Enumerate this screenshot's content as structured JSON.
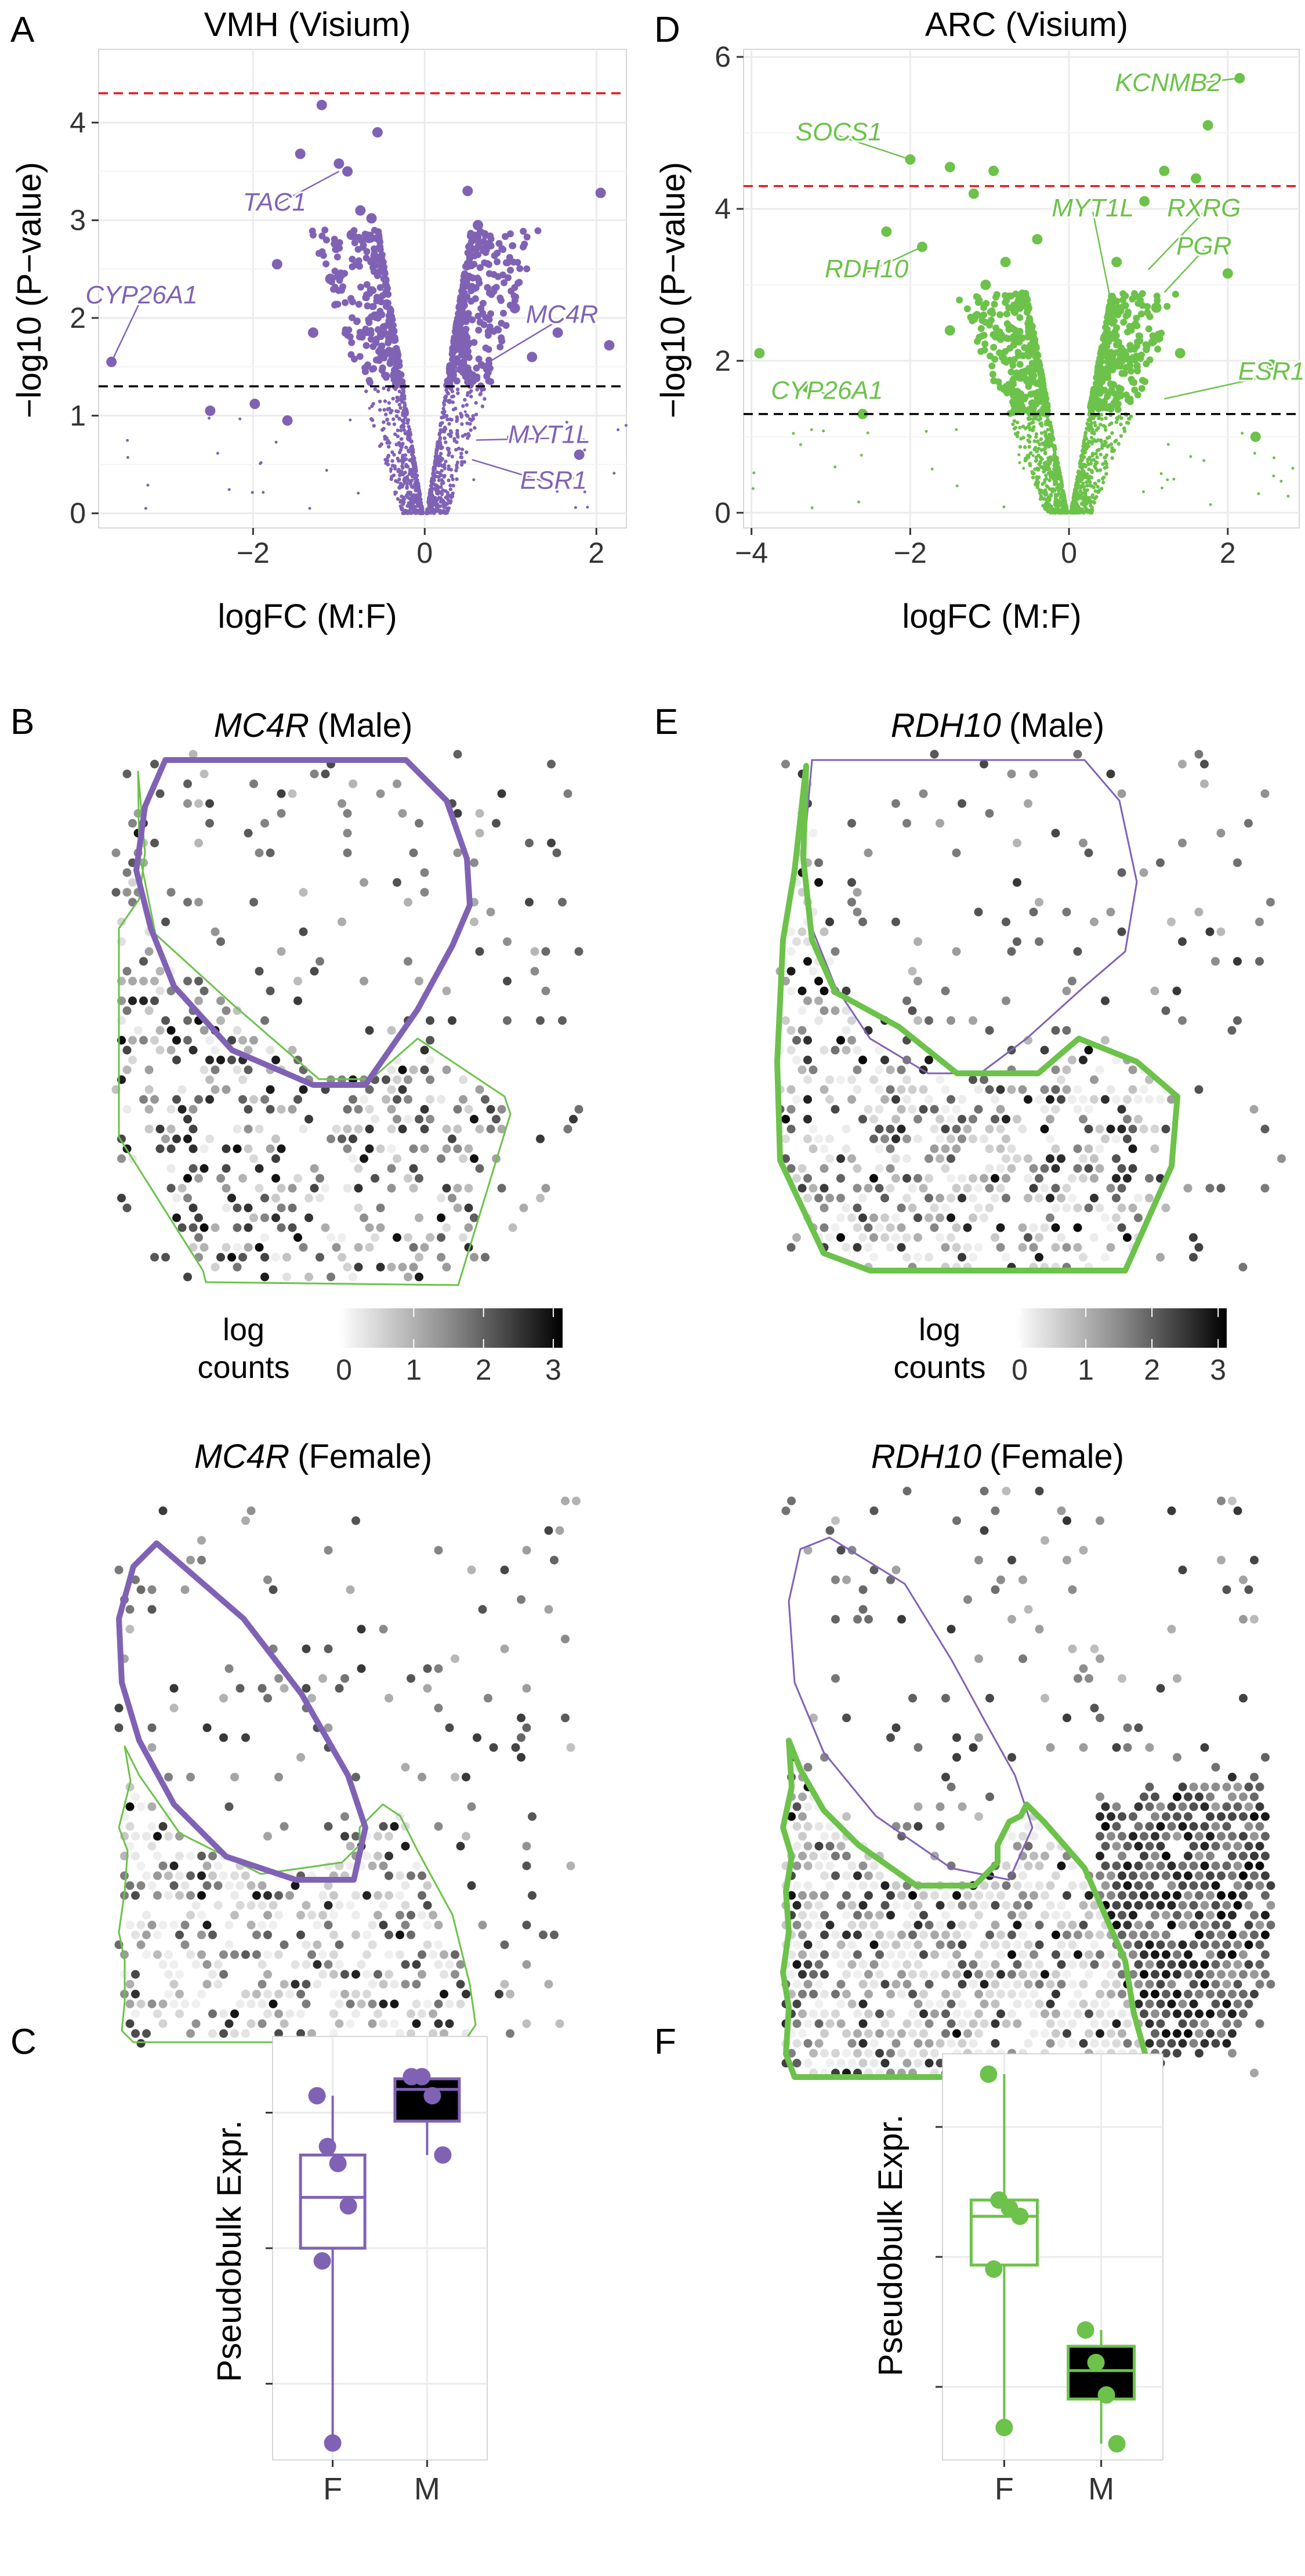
{
  "colors": {
    "vmh": "#8062b5",
    "arc": "#6cc24a",
    "redline": "#e41a1c",
    "blackline": "#000000",
    "grid": "#ebebeb",
    "axis": "#333333"
  },
  "panel_letters": {
    "A": "A",
    "B": "B",
    "C": "C",
    "D": "D",
    "E": "E",
    "F": "F"
  },
  "colorbar_a": {
    "label_line1": "log",
    "label_line2": "counts",
    "ticks": [
      "0",
      "1",
      "2",
      "3"
    ]
  },
  "colorbar_b": {
    "label_line1": "log",
    "label_line2": "counts",
    "ticks": [
      "0",
      "1",
      "2",
      "3"
    ]
  },
  "spatial_titles": {
    "b_male_gene": "MC4R",
    "b_male_sex": "(Male)",
    "b_female_gene": "MC4R",
    "b_female_sex": "(Female)",
    "e_male_gene": "RDH10",
    "e_male_sex": "(Male)",
    "e_female_gene": "RDH10",
    "e_female_sex": "(Female)"
  },
  "chart_data": [
    {
      "type": "scatter",
      "panel": "A",
      "title": "VMH (Visium)",
      "xlabel": "logFC (M:F)",
      "ylabel": "−log10 (P−value)",
      "xlim": [
        -3.8,
        2.35
      ],
      "ylim": [
        -0.15,
        4.75
      ],
      "xticks": [
        -2,
        0,
        2
      ],
      "xtick_labels": [
        "−2",
        "0",
        "2"
      ],
      "yticks": [
        0,
        1,
        2,
        3,
        4
      ],
      "ytick_labels": [
        "0",
        "1",
        "2",
        "3",
        "4"
      ],
      "grid": true,
      "thresholds": [
        {
          "y": 4.3,
          "color": "red",
          "style": "dashed"
        },
        {
          "y": 1.3,
          "color": "black",
          "style": "dashed"
        }
      ],
      "points": [
        {
          "x": -1.2,
          "y": 4.18
        },
        {
          "x": -1.45,
          "y": 3.68
        },
        {
          "x": -1.0,
          "y": 3.58
        },
        {
          "x": -0.9,
          "y": 3.5
        },
        {
          "x": -0.55,
          "y": 3.9
        },
        {
          "x": -1.72,
          "y": 2.55
        },
        {
          "x": -3.65,
          "y": 1.55
        },
        {
          "x": 2.05,
          "y": 3.28
        },
        {
          "x": 0.5,
          "y": 3.3
        },
        {
          "x": 1.55,
          "y": 1.85
        },
        {
          "x": 2.15,
          "y": 1.72
        },
        {
          "x": -1.98,
          "y": 1.12
        },
        {
          "x": -1.6,
          "y": 0.95
        },
        {
          "x": 1.8,
          "y": 0.6
        },
        {
          "x": -0.75,
          "y": 3.1
        },
        {
          "x": -0.62,
          "y": 3.02
        },
        {
          "x": 0.62,
          "y": 2.95
        },
        {
          "x": 0.7,
          "y": 2.7
        },
        {
          "x": -0.85,
          "y": 2.85
        },
        {
          "x": -1.1,
          "y": 2.4
        },
        {
          "x": 1.05,
          "y": 2.1
        },
        {
          "x": -1.3,
          "y": 1.85
        },
        {
          "x": 1.25,
          "y": 1.6
        },
        {
          "x": -2.5,
          "y": 1.05
        }
      ],
      "cloud": {
        "spread": 0.55,
        "n": 1400
      },
      "labels": [
        {
          "text": "TAC1",
          "x": -1.75,
          "y": 3.1,
          "to_x": -1.0,
          "to_y": 3.5
        },
        {
          "text": "CYP26A1",
          "x": -3.3,
          "y": 2.15,
          "to_x": -3.65,
          "to_y": 1.55
        },
        {
          "text": "MC4R",
          "x": 1.6,
          "y": 1.95,
          "to_x": 0.75,
          "to_y": 1.55
        },
        {
          "text": "MYT1L",
          "x": 1.45,
          "y": 0.72,
          "to_x": 0.6,
          "to_y": 0.75
        },
        {
          "text": "ESR1",
          "x": 1.5,
          "y": 0.25,
          "to_x": 0.55,
          "to_y": 0.55
        }
      ]
    },
    {
      "type": "scatter",
      "panel": "D",
      "title": "ARC (Visium)",
      "xlabel": "logFC (M:F)",
      "ylabel": "−log10 (P−value)",
      "xlim": [
        -4.1,
        2.9
      ],
      "ylim": [
        -0.2,
        6.1
      ],
      "xticks": [
        -4,
        -2,
        0,
        2
      ],
      "xtick_labels": [
        "−4",
        "−2",
        "0",
        "2"
      ],
      "yticks": [
        0,
        2,
        4,
        6
      ],
      "ytick_labels": [
        "0",
        "2",
        "4",
        "6"
      ],
      "grid": true,
      "thresholds": [
        {
          "y": 4.3,
          "color": "red",
          "style": "dashed"
        },
        {
          "y": 1.3,
          "color": "black",
          "style": "dashed"
        }
      ],
      "points": [
        {
          "x": 2.15,
          "y": 5.72
        },
        {
          "x": 1.75,
          "y": 5.1
        },
        {
          "x": -2.0,
          "y": 4.65
        },
        {
          "x": -1.5,
          "y": 4.55
        },
        {
          "x": -0.95,
          "y": 4.5
        },
        {
          "x": 1.2,
          "y": 4.5
        },
        {
          "x": 1.6,
          "y": 4.4
        },
        {
          "x": -1.2,
          "y": 4.2
        },
        {
          "x": 0.95,
          "y": 4.1
        },
        {
          "x": 2.0,
          "y": 3.15
        },
        {
          "x": -2.3,
          "y": 3.7
        },
        {
          "x": -1.85,
          "y": 3.5
        },
        {
          "x": -3.3,
          "y": 1.65
        },
        {
          "x": -3.9,
          "y": 2.1
        },
        {
          "x": 2.55,
          "y": 1.95
        },
        {
          "x": 2.35,
          "y": 1.0
        },
        {
          "x": 0.6,
          "y": 3.3
        },
        {
          "x": -0.8,
          "y": 3.3
        },
        {
          "x": -1.05,
          "y": 3.0
        },
        {
          "x": 1.1,
          "y": 2.7
        },
        {
          "x": -2.6,
          "y": 1.3
        },
        {
          "x": -1.5,
          "y": 2.4
        },
        {
          "x": 1.4,
          "y": 2.1
        },
        {
          "x": -0.4,
          "y": 3.6
        }
      ],
      "cloud": {
        "spread": 0.6,
        "n": 1500
      },
      "labels": [
        {
          "text": "KCNMB2",
          "x": 1.25,
          "y": 5.55,
          "to_x": 2.15,
          "to_y": 5.72
        },
        {
          "text": "SOCS1",
          "x": -2.9,
          "y": 4.9,
          "to_x": -2.0,
          "to_y": 4.65
        },
        {
          "text": "MYT1L",
          "x": 0.3,
          "y": 3.9,
          "to_x": 0.6,
          "to_y": 2.4
        },
        {
          "text": "RXRG",
          "x": 1.7,
          "y": 3.9,
          "to_x": 1.0,
          "to_y": 3.2
        },
        {
          "text": "PGR",
          "x": 1.7,
          "y": 3.4,
          "to_x": 1.2,
          "to_y": 2.9
        },
        {
          "text": "RDH10",
          "x": -2.55,
          "y": 3.1,
          "to_x": -1.85,
          "to_y": 3.5
        },
        {
          "text": "ESR1",
          "x": 2.55,
          "y": 1.75,
          "to_x": 1.2,
          "to_y": 1.5
        },
        {
          "text": "CYP26A1",
          "x": -3.05,
          "y": 1.5,
          "to_x": -3.3,
          "to_y": 1.65
        }
      ]
    },
    {
      "type": "box",
      "panel": "C",
      "ylabel": "Pseudobulk Expr.",
      "categories": [
        "F",
        "M"
      ],
      "ylim": [
        0,
        1
      ],
      "series": [
        {
          "name": "F",
          "q1": 0.5,
          "median": 0.62,
          "q3": 0.72,
          "whisker_low": 0.04,
          "whisker_high": 0.86,
          "points": [
            0.86,
            0.74,
            0.7,
            0.6,
            0.47,
            0.04
          ],
          "fill": "white"
        },
        {
          "name": "M",
          "q1": 0.8,
          "median": 0.875,
          "q3": 0.9,
          "whisker_low": 0.72,
          "whisker_high": 0.91,
          "points": [
            0.905,
            0.905,
            0.86,
            0.72
          ],
          "fill": "black"
        }
      ]
    },
    {
      "type": "box",
      "panel": "F",
      "ylabel": "Pseudobulk Expr.",
      "categories": [
        "F",
        "M"
      ],
      "ylim": [
        0,
        1
      ],
      "series": [
        {
          "name": "F",
          "q1": 0.48,
          "median": 0.6,
          "q3": 0.64,
          "whisker_low": 0.08,
          "whisker_high": 0.95,
          "points": [
            0.95,
            0.64,
            0.62,
            0.6,
            0.47,
            0.08
          ],
          "fill": "white"
        },
        {
          "name": "M",
          "q1": 0.15,
          "median": 0.22,
          "q3": 0.28,
          "whisker_low": 0.04,
          "whisker_high": 0.32,
          "points": [
            0.32,
            0.24,
            0.16,
            0.04
          ],
          "fill": "black"
        }
      ]
    }
  ]
}
